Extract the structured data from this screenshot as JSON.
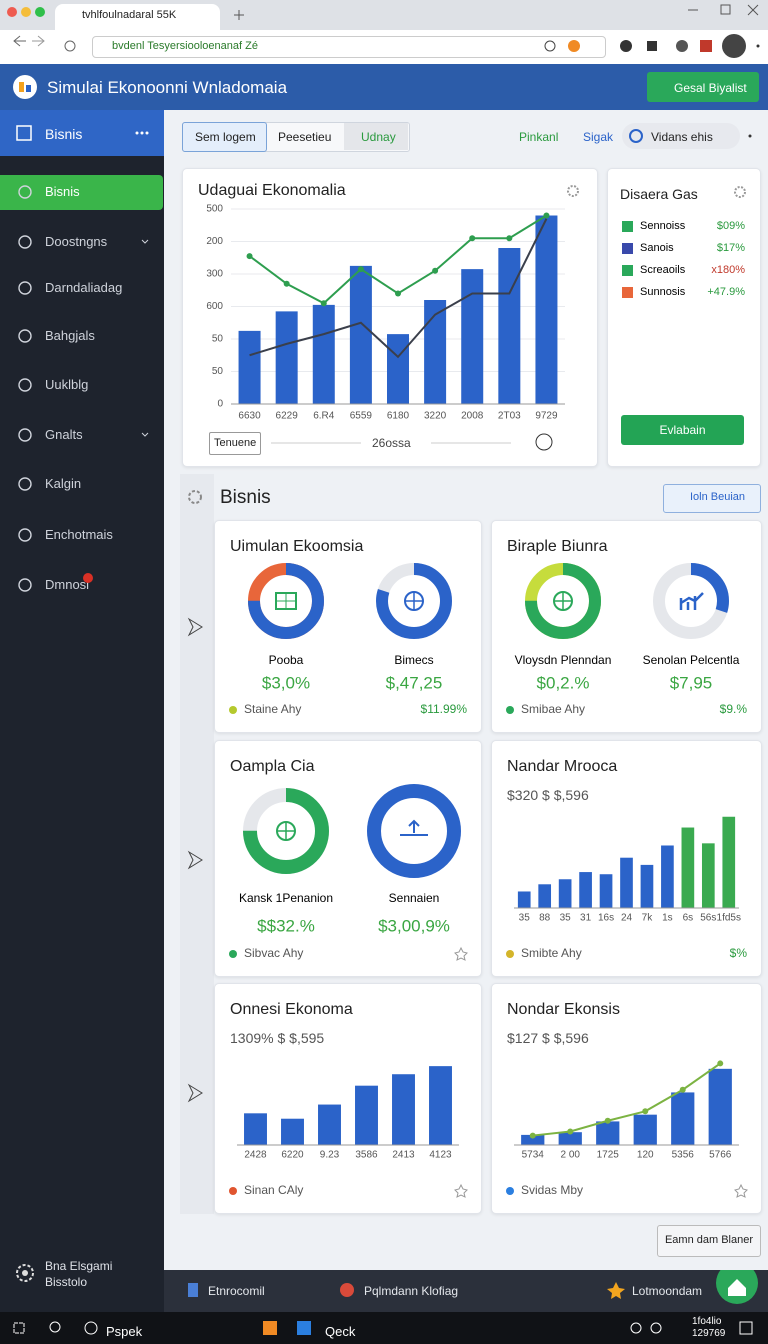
{
  "browser": {
    "tab": "tvhlfoulnadaral 55K",
    "address": "bvdenl Tesyersiooloenanaf Zé"
  },
  "header": {
    "title": "Simulai Ekonoonni Wnladomaia",
    "button": "Gesal Biyalist"
  },
  "sidebar": {
    "top": "Bisnis",
    "items": [
      "Bisnis",
      "Doostngns",
      "Darndaliadag",
      "Bahgjals",
      "Uuklblg",
      "Gnalts",
      "Kalgin",
      "Enchotmais",
      "Dmnosi"
    ],
    "footer": [
      "Bna Elsgami",
      "Bisstolo"
    ]
  },
  "tabs": [
    "Sem logem",
    "Peesetieu",
    "Udnay"
  ],
  "toolbar": [
    "Pinkanl",
    "Sigak",
    "Vidans ehis"
  ],
  "main_chart": {
    "type": "bar",
    "title": "Udaguai Ekonomalia",
    "categories": [
      "6630",
      "6229",
      "6.R4",
      "6559",
      "6180",
      "3220",
      "2008",
      "2T03",
      "9729"
    ],
    "values": [
      2.25,
      2.85,
      3.05,
      4.25,
      2.15,
      3.2,
      4.15,
      4.8,
      5.8
    ],
    "color": "#2b63c9",
    "lines": [
      {
        "color": "#2e9e4f",
        "markers": true,
        "values": [
          4.55,
          3.7,
          3.1,
          4.15,
          3.4,
          4.1,
          5.1,
          5.1,
          5.8
        ]
      },
      {
        "color": "#3a3f4b",
        "markers": false,
        "values": [
          1.5,
          1.85,
          2.15,
          2.5,
          1.45,
          2.75,
          3.4,
          3.4,
          5.7
        ]
      }
    ],
    "ylim": [
      0,
      6
    ],
    "yticks": [
      0,
      {
        "value": 1,
        "label": "50"
      },
      {
        "value": 2,
        "label": "50"
      },
      {
        "value": 3,
        "label": "600"
      },
      {
        "value": 4,
        "label": "300"
      },
      {
        "value": 5,
        "label": "200"
      },
      {
        "value": 6,
        "label": "500"
      }
    ],
    "grid": true,
    "footer_button": "Tenuene",
    "footer_text": "26ossa"
  },
  "gas": {
    "title": "Disaera Gas",
    "items": [
      {
        "label": "Sennoiss",
        "value": "$09%",
        "color": "#2aa85a",
        "value_color": "#2a9a3e"
      },
      {
        "label": "Sanois",
        "value": "$17%",
        "color": "#3949ab",
        "value_color": "#2a9a3e"
      },
      {
        "label": "Screaoils",
        "value": "x180%",
        "color": "#2aa85a",
        "value_color": "#c0392b"
      },
      {
        "label": "Sunnosis",
        "value": "+47.9%",
        "color": "#e8663a",
        "value_color": "#2a9a3e"
      }
    ],
    "button": "Evlabain"
  },
  "section": {
    "title": "Bisnis",
    "button": "Ioln Beuian"
  },
  "cards": [
    {
      "title": "Uimulan Ekoomsia",
      "donuts": [
        {
          "label": "Pooba",
          "amount": "$3,0%",
          "value": 75,
          "color": "#2b63c9",
          "rest": "#e8663a"
        },
        {
          "label": "Bimecs",
          "amount": "$,47,25",
          "value": 80,
          "color": "#2b63c9",
          "rest": "#e5e7eb"
        }
      ],
      "footer": "Staine Ahy",
      "footer_value": "$11.99%"
    },
    {
      "title": "Biraple Biunra",
      "donuts": [
        {
          "label": "Vloysdn Plenndan",
          "amount": "$0,2.%",
          "value": 75,
          "color": "#2aa85a",
          "rest": "#c6dc3c"
        },
        {
          "label": "Senolan Pelcentla",
          "amount": "$7,95",
          "value": 30,
          "color": "#2b63c9",
          "rest": "#e5e7eb"
        }
      ],
      "footer": "Smibae Ahy",
      "footer_value": "$9.%"
    },
    {
      "title": "Oampla Cia",
      "donuts": [
        {
          "label": "Kansk 1Penanion",
          "amount": "$$32.%",
          "value": 75,
          "color": "#2aa85a",
          "rest": "#e5e7eb"
        },
        {
          "label": "Sennaien",
          "amount": "$3,00,9%",
          "value": 100,
          "color": "#2b63c9",
          "rest": "#e5e7eb"
        }
      ],
      "footer": "Sibvac Ahy"
    },
    {
      "title": "Nandar Mrooca",
      "subtitle": "$320 $ $,596",
      "chart": {
        "type": "bar",
        "categories": [
          "35",
          "88",
          "35",
          "31",
          "16s",
          "24",
          "7k",
          "1s",
          "6s",
          "56s",
          "1fd5s"
        ],
        "values": [
          23,
          33,
          40,
          50,
          47,
          70,
          60,
          87,
          112,
          90,
          127
        ],
        "colors": [
          "#2b63c9",
          "#2b63c9",
          "#2b63c9",
          "#2b63c9",
          "#2b63c9",
          "#2b63c9",
          "#2b63c9",
          "#2b63c9",
          "#3aaa50",
          "#3aaa50",
          "#3aaa50"
        ],
        "ylim": [
          0,
          135
        ]
      },
      "footer": "Smibte Ahy",
      "footer_value": "$%"
    },
    {
      "title": "Onnesi Ekonoma",
      "subtitle": "1309% $ $,595",
      "chart": {
        "type": "bar",
        "categories": [
          "2428",
          "6220",
          "9.23",
          "3586",
          "2413",
          "4123"
        ],
        "values": [
          47,
          39,
          60,
          88,
          105,
          117
        ],
        "colors": [
          "#2b63c9",
          "#2b63c9",
          "#2b63c9",
          "#2b63c9",
          "#2b63c9",
          "#2b63c9"
        ],
        "ylim": [
          0,
          135
        ]
      },
      "footer": "Sinan CAly"
    },
    {
      "title": "Nondar Ekonsis",
      "subtitle": "$127 $ $,596",
      "chart": {
        "type": "bar",
        "categories": [
          "5734",
          "2 00",
          "1725",
          "120",
          "5356",
          "5766"
        ],
        "values": [
          15,
          19,
          35,
          45,
          78,
          113
        ],
        "colors": [
          "#2b63c9",
          "#2b63c9",
          "#2b63c9",
          "#2b63c9",
          "#2b63c9",
          "#2b63c9"
        ],
        "line": {
          "color": "#7cb342",
          "values": [
            14,
            20,
            36,
            50,
            82,
            121
          ]
        },
        "ylim": [
          0,
          135
        ]
      },
      "footer": "Svidas Mby"
    }
  ],
  "corner_button": "Eamn dam Blaner",
  "bottom_bar": [
    "Etnrocomil",
    "Pqlmdann Klofiag",
    "Lotmoondam"
  ],
  "taskbar": {
    "search": "Pspek",
    "app": "Qeck",
    "time": [
      "1fo4lio",
      "129769"
    ]
  }
}
